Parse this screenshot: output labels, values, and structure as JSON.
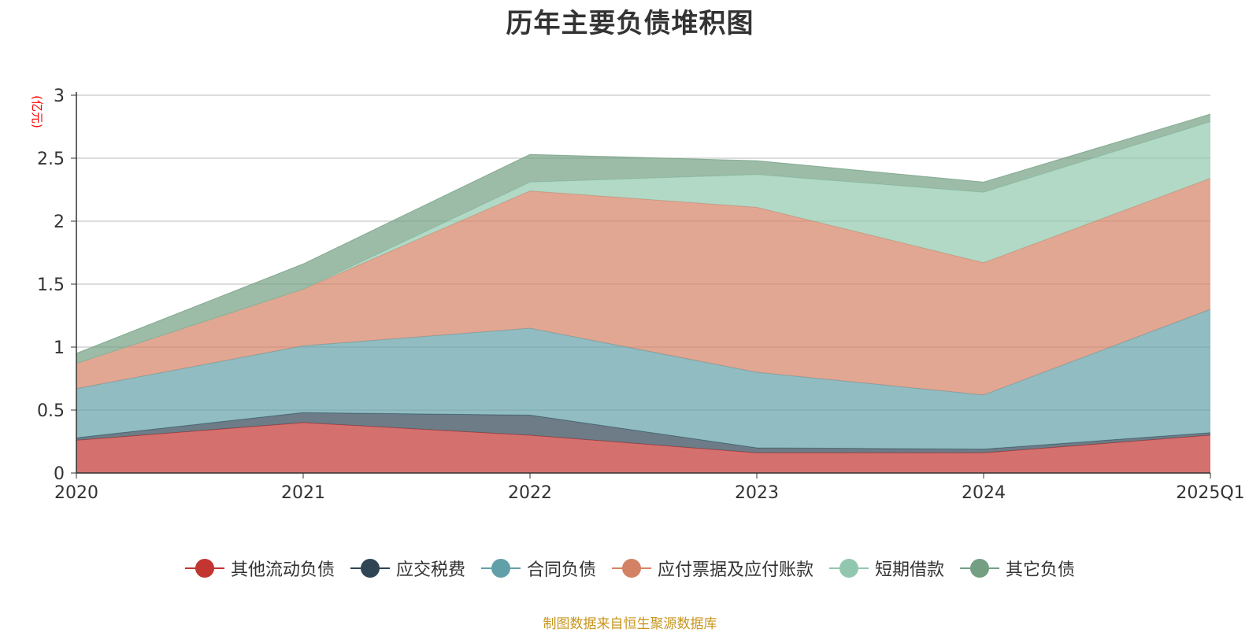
{
  "title": "历年主要负债堆积图",
  "source_note": "制图数据来自恒生聚源数据库",
  "chart_data": {
    "type": "area",
    "stacked": true,
    "title": "历年主要负债堆积图",
    "ylabel": "(亿元)",
    "xlabel": "",
    "x": [
      "2020",
      "2021",
      "2022",
      "2023",
      "2024",
      "2025Q1"
    ],
    "ylim": [
      0,
      3
    ],
    "yticks": [
      "0",
      "0.5",
      "1",
      "1.5",
      "2",
      "2.5",
      "3"
    ],
    "grid": true,
    "legend_position": "bottom",
    "series": [
      {
        "name": "其他流动负债",
        "color": "#c23531",
        "values": [
          0.26,
          0.4,
          0.3,
          0.16,
          0.16,
          0.3
        ]
      },
      {
        "name": "应交税费",
        "color": "#2f4554",
        "values": [
          0.02,
          0.08,
          0.16,
          0.04,
          0.03,
          0.02
        ]
      },
      {
        "name": "合同负债",
        "color": "#61a0a8",
        "values": [
          0.39,
          0.53,
          0.69,
          0.6,
          0.43,
          0.98
        ]
      },
      {
        "name": "应付票据及应付账款",
        "color": "#d48265",
        "values": [
          0.2,
          0.45,
          1.09,
          1.31,
          1.05,
          1.04
        ]
      },
      {
        "name": "短期借款",
        "color": "#91c7ae",
        "values": [
          0.0,
          0.0,
          0.07,
          0.26,
          0.56,
          0.45
        ]
      },
      {
        "name": "其它负债",
        "color": "#749f83",
        "values": [
          0.08,
          0.2,
          0.22,
          0.11,
          0.08,
          0.06
        ]
      }
    ]
  }
}
